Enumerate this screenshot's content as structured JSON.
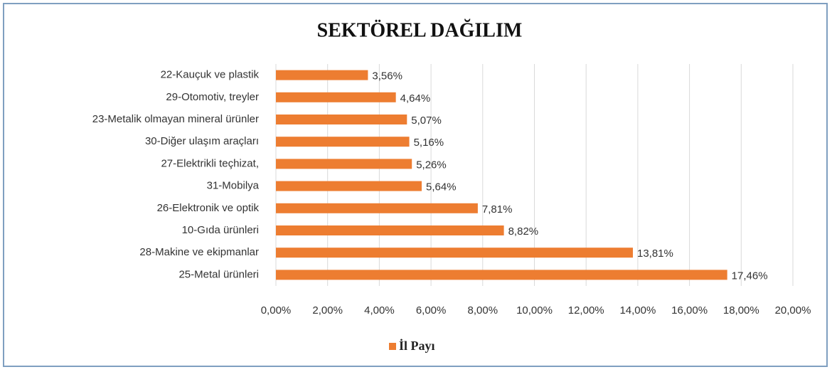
{
  "chart_data": {
    "type": "bar",
    "orientation": "horizontal",
    "title": "SEKTÖREL DAĞILIM",
    "categories": [
      "22-Kauçuk ve plastik",
      "29-Otomotiv, treyler",
      "23-Metalik olmayan mineral ürünler",
      "30-Diğer ulaşım araçları",
      "27-Elektrikli teçhizat,",
      "31-Mobilya",
      "26-Elektronik ve optik",
      "10-Gıda ürünleri",
      "28-Makine ve ekipmanlar",
      "25-Metal ürünleri"
    ],
    "series": [
      {
        "name": "İl Payı",
        "color": "#ed7d31",
        "values": [
          3.56,
          4.64,
          5.07,
          5.16,
          5.26,
          5.64,
          7.81,
          8.82,
          13.81,
          17.46
        ],
        "value_labels": [
          "3,56%",
          "4,64%",
          "5,07%",
          "5,16%",
          "5,26%",
          "5,64%",
          "7,81%",
          "8,82%",
          "13,81%",
          "17,46%"
        ]
      }
    ],
    "xlim": [
      0,
      20
    ],
    "xticks": [
      {
        "value": 0,
        "label": "0,00%"
      },
      {
        "value": 2,
        "label": "2,00%"
      },
      {
        "value": 4,
        "label": "4,00%"
      },
      {
        "value": 6,
        "label": "6,00%"
      },
      {
        "value": 8,
        "label": "8,00%"
      },
      {
        "value": 10,
        "label": "10,00%"
      },
      {
        "value": 12,
        "label": "12,00%"
      },
      {
        "value": 14,
        "label": "14,00%"
      },
      {
        "value": 16,
        "label": "16,00%"
      },
      {
        "value": 18,
        "label": "18,00%"
      },
      {
        "value": 20,
        "label": "20,00%"
      }
    ],
    "grid": true,
    "legend": "bottom"
  }
}
